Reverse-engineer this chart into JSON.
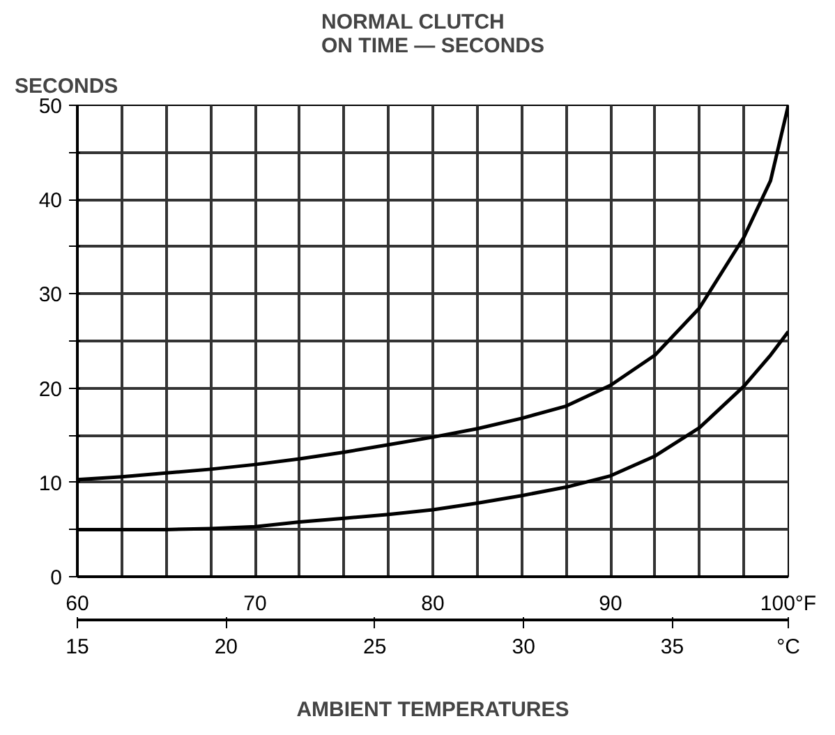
{
  "chart_data": {
    "type": "line",
    "title": "NORMAL CLUTCH\nON TIME — SECONDS",
    "ylabel": "SECONDS",
    "xlabel": "AMBIENT TEMPERATURES",
    "x": [
      60,
      62.5,
      65,
      67.5,
      70,
      72.5,
      75,
      77.5,
      80,
      82.5,
      85,
      87.5,
      90,
      92.5,
      95,
      97.5,
      99,
      100
    ],
    "series": [
      {
        "color": "#000000",
        "values": [
          10.3,
          10.6,
          11,
          11.4,
          11.9,
          12.5,
          13.2,
          14,
          14.8,
          15.7,
          16.8,
          18.1,
          20.3,
          23.5,
          28.5,
          36,
          42,
          50
        ]
      },
      {
        "color": "#000000",
        "values": [
          5,
          5,
          5,
          5.1,
          5.3,
          5.8,
          6.2,
          6.6,
          7.1,
          7.8,
          8.6,
          9.5,
          10.7,
          12.8,
          15.8,
          20.2,
          23.5,
          26
        ]
      }
    ],
    "xlim": [
      60,
      100
    ],
    "ylim": [
      0,
      50
    ],
    "xticks": [
      60,
      {
        "value": 62.5,
        "label": null
      },
      {
        "value": 65,
        "label": null
      },
      {
        "value": 67.5,
        "label": null
      },
      70,
      {
        "value": 72.5,
        "label": null
      },
      {
        "value": 75,
        "label": null
      },
      {
        "value": 77.5,
        "label": null
      },
      80,
      {
        "value": 82.5,
        "label": null
      },
      {
        "value": 85,
        "label": null
      },
      {
        "value": 87.5,
        "label": null
      },
      90,
      {
        "value": 92.5,
        "label": null
      },
      {
        "value": 95,
        "label": null
      },
      {
        "value": 97.5,
        "label": null
      },
      {
        "value": 100,
        "label": "100°F"
      }
    ],
    "yticks": [
      0,
      {
        "value": 5,
        "label": null
      },
      10,
      {
        "value": 15,
        "label": null
      },
      20,
      {
        "value": 25,
        "label": null
      },
      30,
      {
        "value": 35,
        "label": null
      },
      40,
      {
        "value": 45,
        "label": null
      },
      50
    ],
    "x2lim": [
      15,
      38.9
    ],
    "x2ticks": [
      15,
      20,
      25,
      30,
      35,
      {
        "value": 38.9,
        "label": "°C"
      }
    ],
    "grid": true,
    "line_style": "solid",
    "marker": "none"
  }
}
